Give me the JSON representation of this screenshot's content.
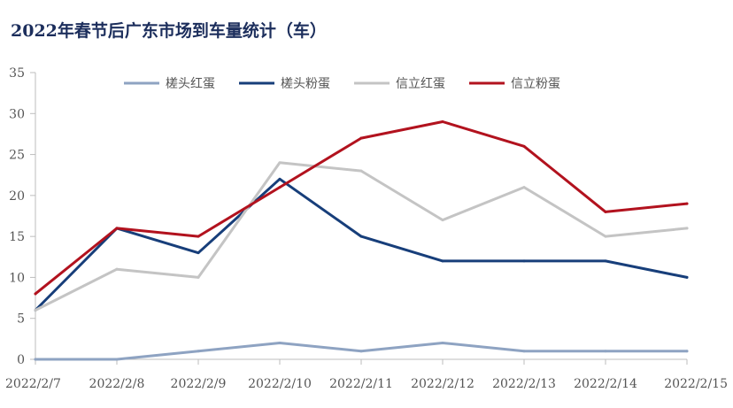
{
  "chart_data": {
    "type": "line",
    "title": "2022年春节后广东市场到车量统计（车）",
    "categories": [
      "2022/2/7",
      "2022/2/8",
      "2022/2/9",
      "2022/2/10",
      "2022/2/11",
      "2022/2/12",
      "2022/2/13",
      "2022/2/14",
      "2022/2/15"
    ],
    "ylim": [
      0,
      35
    ],
    "yticks": [
      0,
      5,
      10,
      15,
      20,
      25,
      30,
      35
    ],
    "grid": false,
    "legend_position": "top",
    "series": [
      {
        "name": "槎头红蛋",
        "color": "#8ea3c2",
        "values": [
          0,
          0,
          1,
          2,
          1,
          2,
          1,
          1,
          1
        ]
      },
      {
        "name": "槎头粉蛋",
        "color": "#173e7a",
        "values": [
          6,
          16,
          13,
          22,
          15,
          12,
          12,
          12,
          10
        ]
      },
      {
        "name": "信立红蛋",
        "color": "#c4c4c4",
        "values": [
          6,
          11,
          10,
          24,
          23,
          17,
          21,
          15,
          16
        ]
      },
      {
        "name": "信立粉蛋",
        "color": "#b2121e",
        "values": [
          8,
          16,
          15,
          21,
          27,
          29,
          26,
          18,
          19
        ]
      }
    ]
  }
}
